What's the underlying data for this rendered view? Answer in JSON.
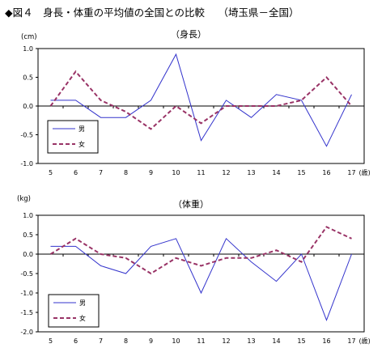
{
  "figure_title": "◆図４　身長・体重の平均値の全国との比較　 （埼玉県－全国）",
  "chart_data": [
    {
      "type": "line",
      "title": "（身長）",
      "unit_label": "(cm)",
      "x_unit": "(歳)",
      "categories": [
        "5",
        "6",
        "7",
        "8",
        "9",
        "10",
        "11",
        "12",
        "13",
        "14",
        "15",
        "16",
        "17"
      ],
      "ylim": [
        -1.0,
        1.0
      ],
      "yticks": [
        "1.0",
        "0.5",
        "0.0",
        "-0.5",
        "-1.0"
      ],
      "legend": "bottom-left",
      "series": [
        {
          "name": "男",
          "color": "#3333cc",
          "style": "solid",
          "values": [
            0.1,
            0.1,
            -0.2,
            -0.2,
            0.1,
            0.9,
            -0.6,
            0.1,
            -0.2,
            0.2,
            0.1,
            -0.7,
            0.2
          ]
        },
        {
          "name": "女",
          "color": "#993366",
          "style": "dashed",
          "values": [
            0.0,
            0.6,
            0.1,
            -0.1,
            -0.4,
            0.0,
            -0.3,
            0.0,
            0.0,
            0.0,
            0.1,
            0.5,
            0.0
          ]
        }
      ]
    },
    {
      "type": "line",
      "title": "（体重）",
      "unit_label": "(kg)",
      "x_unit": "(歳)",
      "categories": [
        "5",
        "6",
        "7",
        "8",
        "9",
        "10",
        "11",
        "12",
        "13",
        "14",
        "15",
        "16",
        "17"
      ],
      "ylim": [
        -2.0,
        1.0
      ],
      "yticks": [
        "1.0",
        "0.5",
        "0.0",
        "-0.5",
        "-1.0",
        "-1.5",
        "-2.0"
      ],
      "legend": "bottom-left",
      "series": [
        {
          "name": "男",
          "color": "#3333cc",
          "style": "solid",
          "values": [
            0.2,
            0.2,
            -0.3,
            -0.5,
            0.2,
            0.4,
            -1.0,
            0.4,
            -0.2,
            -0.7,
            0.0,
            -1.7,
            0.0
          ]
        },
        {
          "name": "女",
          "color": "#993366",
          "style": "dashed",
          "values": [
            0.0,
            0.4,
            0.0,
            -0.1,
            -0.5,
            -0.1,
            -0.3,
            -0.1,
            -0.1,
            0.1,
            -0.2,
            0.7,
            0.4
          ]
        }
      ]
    }
  ]
}
